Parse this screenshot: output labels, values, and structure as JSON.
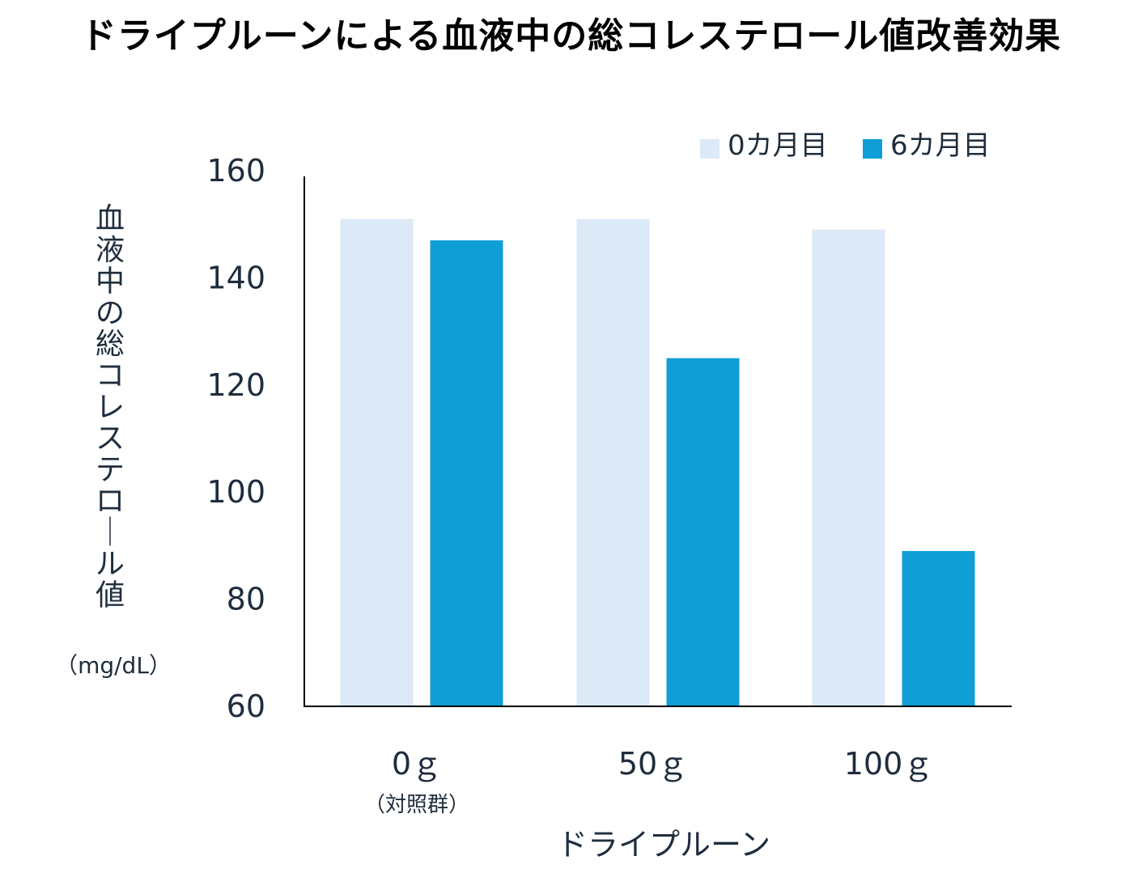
{
  "chart_data": {
    "type": "bar",
    "title": "ドライプルーンによる血液中の総コレステロール値改善効果",
    "categories": [
      "0ｇ",
      "50ｇ",
      "100ｇ"
    ],
    "category_sublabels": [
      "（対照群）",
      "",
      ""
    ],
    "xlabel": "ドライプルーン",
    "ylabel": "血液中の総コレステロール値",
    "yunit": "（mg/dL）",
    "ylim": [
      60,
      160
    ],
    "yticks": [
      "60",
      "80",
      "100",
      "120",
      "140",
      "160"
    ],
    "legend_position": "top-right",
    "grid": false,
    "series": [
      {
        "name": "0カ月目",
        "color": "#dce9f6",
        "values": [
          151,
          151,
          149
        ]
      },
      {
        "name": "6カ月目",
        "color": "#109ed6",
        "values": [
          147,
          125,
          89
        ]
      }
    ]
  }
}
